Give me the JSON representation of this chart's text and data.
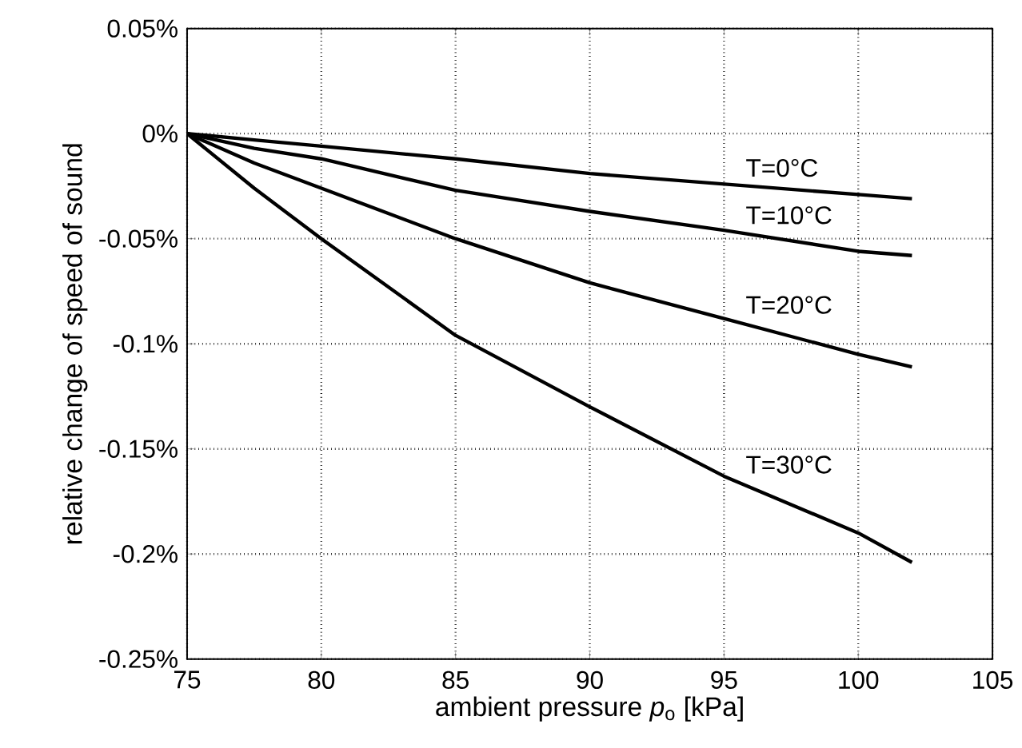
{
  "chart_data": {
    "type": "line",
    "xlabel": "ambient pressure *p*$_{o}$ [kPa]",
    "ylabel": "relative change of speed of sound",
    "x": [
      75,
      77.5,
      80,
      85,
      90,
      95,
      100,
      102
    ],
    "series": [
      {
        "name": "T=0°C",
        "color": "#000000",
        "values": [
          0,
          -0.003,
          -0.006,
          -0.012,
          -0.019,
          -0.024,
          -0.029,
          -0.031
        ]
      },
      {
        "name": "T=10°C",
        "color": "#000000",
        "values": [
          0,
          -0.007,
          -0.012,
          -0.027,
          -0.037,
          -0.046,
          -0.056,
          -0.058
        ]
      },
      {
        "name": "T=20°C",
        "color": "#000000",
        "values": [
          0,
          -0.014,
          -0.026,
          -0.05,
          -0.071,
          -0.088,
          -0.105,
          -0.111
        ]
      },
      {
        "name": "T=30°C",
        "color": "#000000",
        "values": [
          0,
          -0.026,
          -0.05,
          -0.096,
          -0.13,
          -0.163,
          -0.19,
          -0.204
        ]
      }
    ],
    "xlim": [
      75,
      105
    ],
    "xticks": [
      75,
      80,
      85,
      90,
      95,
      100,
      105
    ],
    "ylim": [
      -0.25,
      0.05
    ],
    "yticks": [
      {
        "value": -0.25,
        "label": "-0.25%"
      },
      {
        "value": -0.2,
        "label": "-0.2%"
      },
      {
        "value": -0.15,
        "label": "-0.15%"
      },
      {
        "value": -0.1,
        "label": "-0.1%"
      },
      {
        "value": -0.05,
        "label": "-0.05%"
      },
      {
        "value": 0,
        "label": "0%"
      },
      {
        "value": 0.05,
        "label": "0.05%"
      }
    ],
    "grid": true,
    "marker": "none",
    "line_style": "solid"
  }
}
